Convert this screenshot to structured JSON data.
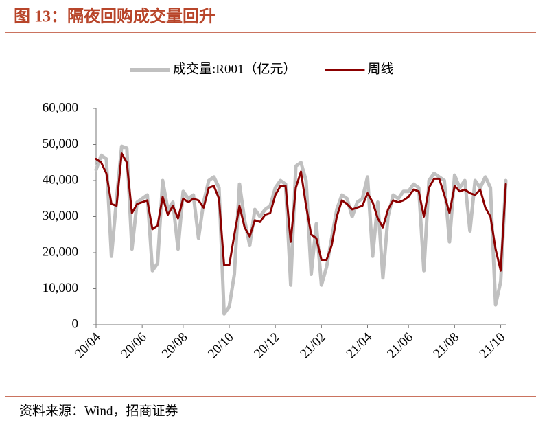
{
  "chart_data": {
    "type": "line",
    "title": "图 13：隔夜回购成交量回升",
    "source": "资料来源：Wind，招商证券",
    "categories": [
      "20/04",
      null,
      null,
      null,
      null,
      null,
      null,
      null,
      null,
      "20/06",
      null,
      null,
      null,
      null,
      null,
      null,
      null,
      "20/08",
      null,
      null,
      null,
      null,
      null,
      null,
      null,
      null,
      "20/10",
      null,
      null,
      null,
      null,
      null,
      null,
      null,
      null,
      "20/12",
      null,
      null,
      null,
      null,
      null,
      null,
      null,
      null,
      "21/02",
      null,
      null,
      null,
      null,
      null,
      null,
      null,
      null,
      "21/04",
      null,
      null,
      null,
      null,
      null,
      null,
      null,
      "21/06",
      null,
      null,
      null,
      null,
      null,
      null,
      null,
      null,
      "21/08",
      null,
      null,
      null,
      null,
      null,
      null,
      null,
      null,
      "21/10",
      null
    ],
    "series": [
      {
        "name": "成交量:R001（亿元）",
        "color": "#c0c0c0",
        "width": 5,
        "values": [
          43000,
          47000,
          46000,
          19000,
          35000,
          49500,
          49000,
          21000,
          34000,
          35000,
          36000,
          15000,
          17000,
          40000,
          32000,
          34000,
          21000,
          37000,
          35000,
          36000,
          24000,
          34000,
          40000,
          41000,
          38000,
          3000,
          5000,
          14000,
          39000,
          29000,
          22000,
          32000,
          30000,
          32000,
          33000,
          38000,
          40000,
          39000,
          11000,
          44000,
          45000,
          40000,
          14000,
          28000,
          11000,
          16000,
          24000,
          32000,
          36000,
          35000,
          30000,
          34000,
          35000,
          41000,
          19000,
          34000,
          13000,
          30000,
          36000,
          35000,
          37000,
          37000,
          39000,
          38000,
          15000,
          40000,
          42000,
          41000,
          40000,
          23000,
          41500,
          38000,
          40000,
          26000,
          40000,
          38000,
          41000,
          38000,
          5500,
          12000,
          40000
        ]
      },
      {
        "name": "周线",
        "color": "#8b0000",
        "width": 3,
        "values": [
          46000,
          45000,
          42000,
          33500,
          33000,
          47500,
          45000,
          31000,
          33500,
          34000,
          34500,
          26500,
          27500,
          35500,
          30500,
          33000,
          29500,
          35000,
          34000,
          35000,
          34500,
          32500,
          38000,
          38500,
          35000,
          16500,
          16500,
          25000,
          33000,
          27000,
          24500,
          29000,
          28500,
          30500,
          31000,
          36000,
          38500,
          38500,
          23000,
          38000,
          42500,
          33000,
          25000,
          24000,
          18000,
          18000,
          22000,
          30000,
          34500,
          33500,
          32000,
          32500,
          33000,
          36500,
          34000,
          29500,
          27000,
          32000,
          34500,
          34000,
          34500,
          35500,
          37500,
          37000,
          30000,
          38000,
          40500,
          40500,
          36000,
          31000,
          38500,
          37000,
          37500,
          36500,
          36000,
          37500,
          32500,
          30000,
          21000,
          15000,
          39000
        ]
      }
    ],
    "ylim": [
      0,
      60000
    ],
    "yticks": [
      0,
      {
        "value": 10000,
        "label": "10,000"
      },
      {
        "value": 20000,
        "label": "20,000"
      },
      {
        "value": 30000,
        "label": "30,000"
      },
      {
        "value": 40000,
        "label": "40,000"
      },
      {
        "value": 50000,
        "label": "50,000"
      },
      {
        "value": 60000,
        "label": "60,000"
      }
    ],
    "grid": false
  }
}
